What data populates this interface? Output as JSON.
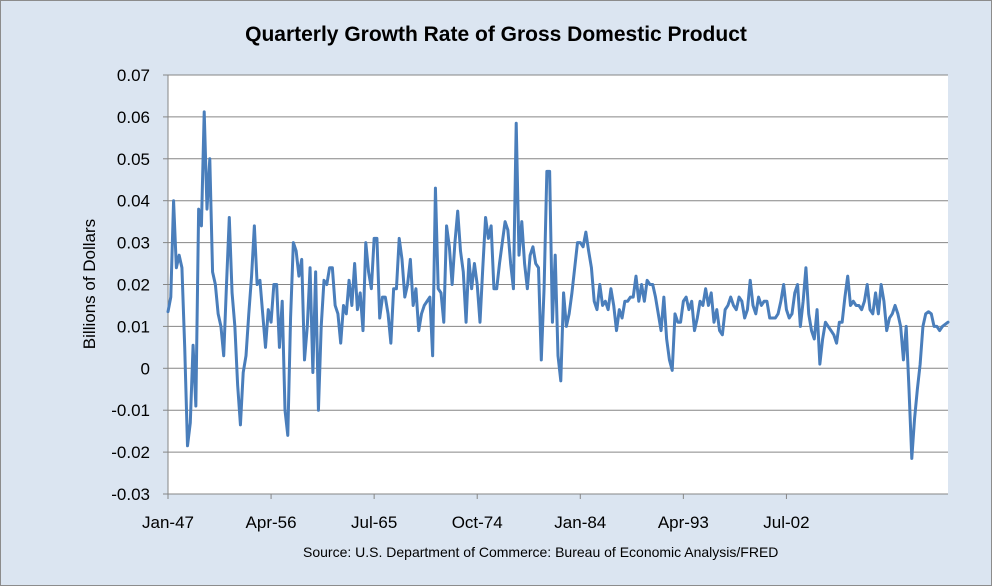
{
  "chart_data": {
    "type": "line",
    "title": "Quarterly Growth Rate of Gross Domestic Product",
    "ylabel": "Billions of Dollars",
    "xlabel": "",
    "source": "Source: U.S. Department of Commerce: Bureau of Economic Analysis/FRED",
    "ylim": [
      -0.03,
      0.07
    ],
    "y_ticks": [
      "0.07",
      "0.06",
      "0.05",
      "0.04",
      "0.03",
      "0.02",
      "0.01",
      "0",
      "-0.01",
      "-0.02",
      "-0.03"
    ],
    "x_ticks": [
      "Jan-47",
      "Apr-56",
      "Jul-65",
      "Oct-74",
      "Jan-84",
      "Apr-93",
      "Jul-02"
    ],
    "grid": "horizontal",
    "legend": "none",
    "line_color": "#4a7ebb",
    "x_start": "Jan-47",
    "frequency": "quarterly",
    "series": [
      {
        "values": [
          0.0135,
          0.017,
          0.04,
          0.024,
          0.027,
          0.024,
          0.005,
          -0.0185,
          -0.013,
          0.0055,
          -0.009,
          0.038,
          0.034,
          0.0612,
          0.038,
          0.05,
          0.023,
          0.02,
          0.013,
          0.01,
          0.003,
          0.02,
          0.036,
          0.018,
          0.01,
          -0.004,
          -0.0135,
          -0.001,
          0.003,
          0.013,
          0.022,
          0.034,
          0.02,
          0.021,
          0.013,
          0.005,
          0.014,
          0.011,
          0.02,
          0.02,
          0.005,
          0.016,
          -0.01,
          -0.016,
          0.012,
          0.03,
          0.028,
          0.022,
          0.026,
          0.002,
          0.01,
          0.024,
          -0.001,
          0.023,
          -0.01,
          0.01,
          0.021,
          0.02,
          0.024,
          0.024,
          0.015,
          0.013,
          0.006,
          0.015,
          0.013,
          0.021,
          0.015,
          0.025,
          0.014,
          0.018,
          0.009,
          0.03,
          0.023,
          0.019,
          0.031,
          0.031,
          0.012,
          0.017,
          0.017,
          0.013,
          0.006,
          0.019,
          0.019,
          0.031,
          0.026,
          0.017,
          0.02,
          0.026,
          0.015,
          0.019,
          0.009,
          0.013,
          0.015,
          0.016,
          0.017,
          0.003,
          0.043,
          0.019,
          0.018,
          0.011,
          0.034,
          0.029,
          0.02,
          0.03,
          0.0375,
          0.028,
          0.023,
          0.011,
          0.026,
          0.019,
          0.025,
          0.02,
          0.011,
          0.024,
          0.036,
          0.031,
          0.034,
          0.019,
          0.019,
          0.025,
          0.03,
          0.035,
          0.033,
          0.025,
          0.019,
          0.0585,
          0.027,
          0.035,
          0.025,
          0.019,
          0.027,
          0.029,
          0.025,
          0.024,
          0.002,
          0.019,
          0.047,
          0.047,
          0.011,
          0.027,
          0.003,
          -0.003,
          0.018,
          0.01,
          0.013,
          0.018,
          0.024,
          0.03,
          0.03,
          0.029,
          0.0325,
          0.028,
          0.024,
          0.016,
          0.014,
          0.02,
          0.015,
          0.016,
          0.014,
          0.019,
          0.015,
          0.009,
          0.014,
          0.012,
          0.016,
          0.016,
          0.017,
          0.017,
          0.022,
          0.016,
          0.02,
          0.016,
          0.021,
          0.02,
          0.02,
          0.017,
          0.013,
          0.009,
          0.017,
          0.007,
          0.002,
          -0.0005,
          0.013,
          0.011,
          0.011,
          0.016,
          0.017,
          0.014,
          0.016,
          0.009,
          0.012,
          0.016,
          0.015,
          0.019,
          0.015,
          0.018,
          0.011,
          0.014,
          0.009,
          0.008,
          0.014,
          0.015,
          0.017,
          0.015,
          0.014,
          0.017,
          0.016,
          0.012,
          0.014,
          0.021,
          0.015,
          0.013,
          0.017,
          0.015,
          0.016,
          0.016,
          0.012,
          0.012,
          0.012,
          0.013,
          0.016,
          0.02,
          0.014,
          0.012,
          0.013,
          0.018,
          0.02,
          0.01,
          0.016,
          0.024,
          0.013,
          0.009,
          0.007,
          0.014,
          0.001,
          0.007,
          0.011,
          0.01,
          0.009,
          0.008,
          0.006,
          0.011,
          0.011,
          0.017,
          0.022,
          0.015,
          0.016,
          0.015,
          0.015,
          0.014,
          0.016,
          0.02,
          0.014,
          0.013,
          0.018,
          0.013,
          0.02,
          0.016,
          0.009,
          0.012,
          0.013,
          0.015,
          0.013,
          0.01,
          0.002,
          0.01,
          -0.005,
          -0.0215,
          -0.012,
          -0.005,
          0.001,
          0.01,
          0.013,
          0.0135,
          0.013,
          0.01,
          0.01,
          0.009,
          0.01,
          0.0105,
          0.011
        ]
      }
    ]
  }
}
